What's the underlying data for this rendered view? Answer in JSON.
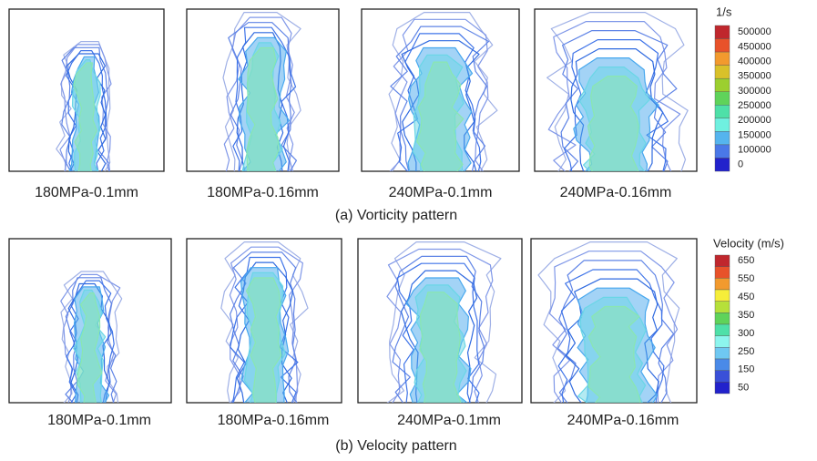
{
  "rows": [
    {
      "caption": "(a) Vorticity pattern",
      "panels": [
        "180MPa-0.1mm",
        "180MPa-0.16mm",
        "240MPa-0.1mm",
        "240MPa-0.16mm"
      ],
      "legend": {
        "title": "1/s",
        "labels": [
          "500000",
          "450000",
          "400000",
          "350000",
          "300000",
          "250000",
          "200000",
          "150000",
          "100000",
          "0"
        ]
      }
    },
    {
      "caption": "(b) Velocity pattern",
      "panels": [
        "180MPa-0.1mm",
        "180MPa-0.16mm",
        "240MPa-0.1mm",
        "240MPa-0.16mm"
      ],
      "legend": {
        "title": "Velocity (m/s)",
        "labels": [
          "650",
          "550",
          "450",
          "350",
          "300",
          "250",
          "150",
          "50"
        ]
      }
    }
  ]
}
